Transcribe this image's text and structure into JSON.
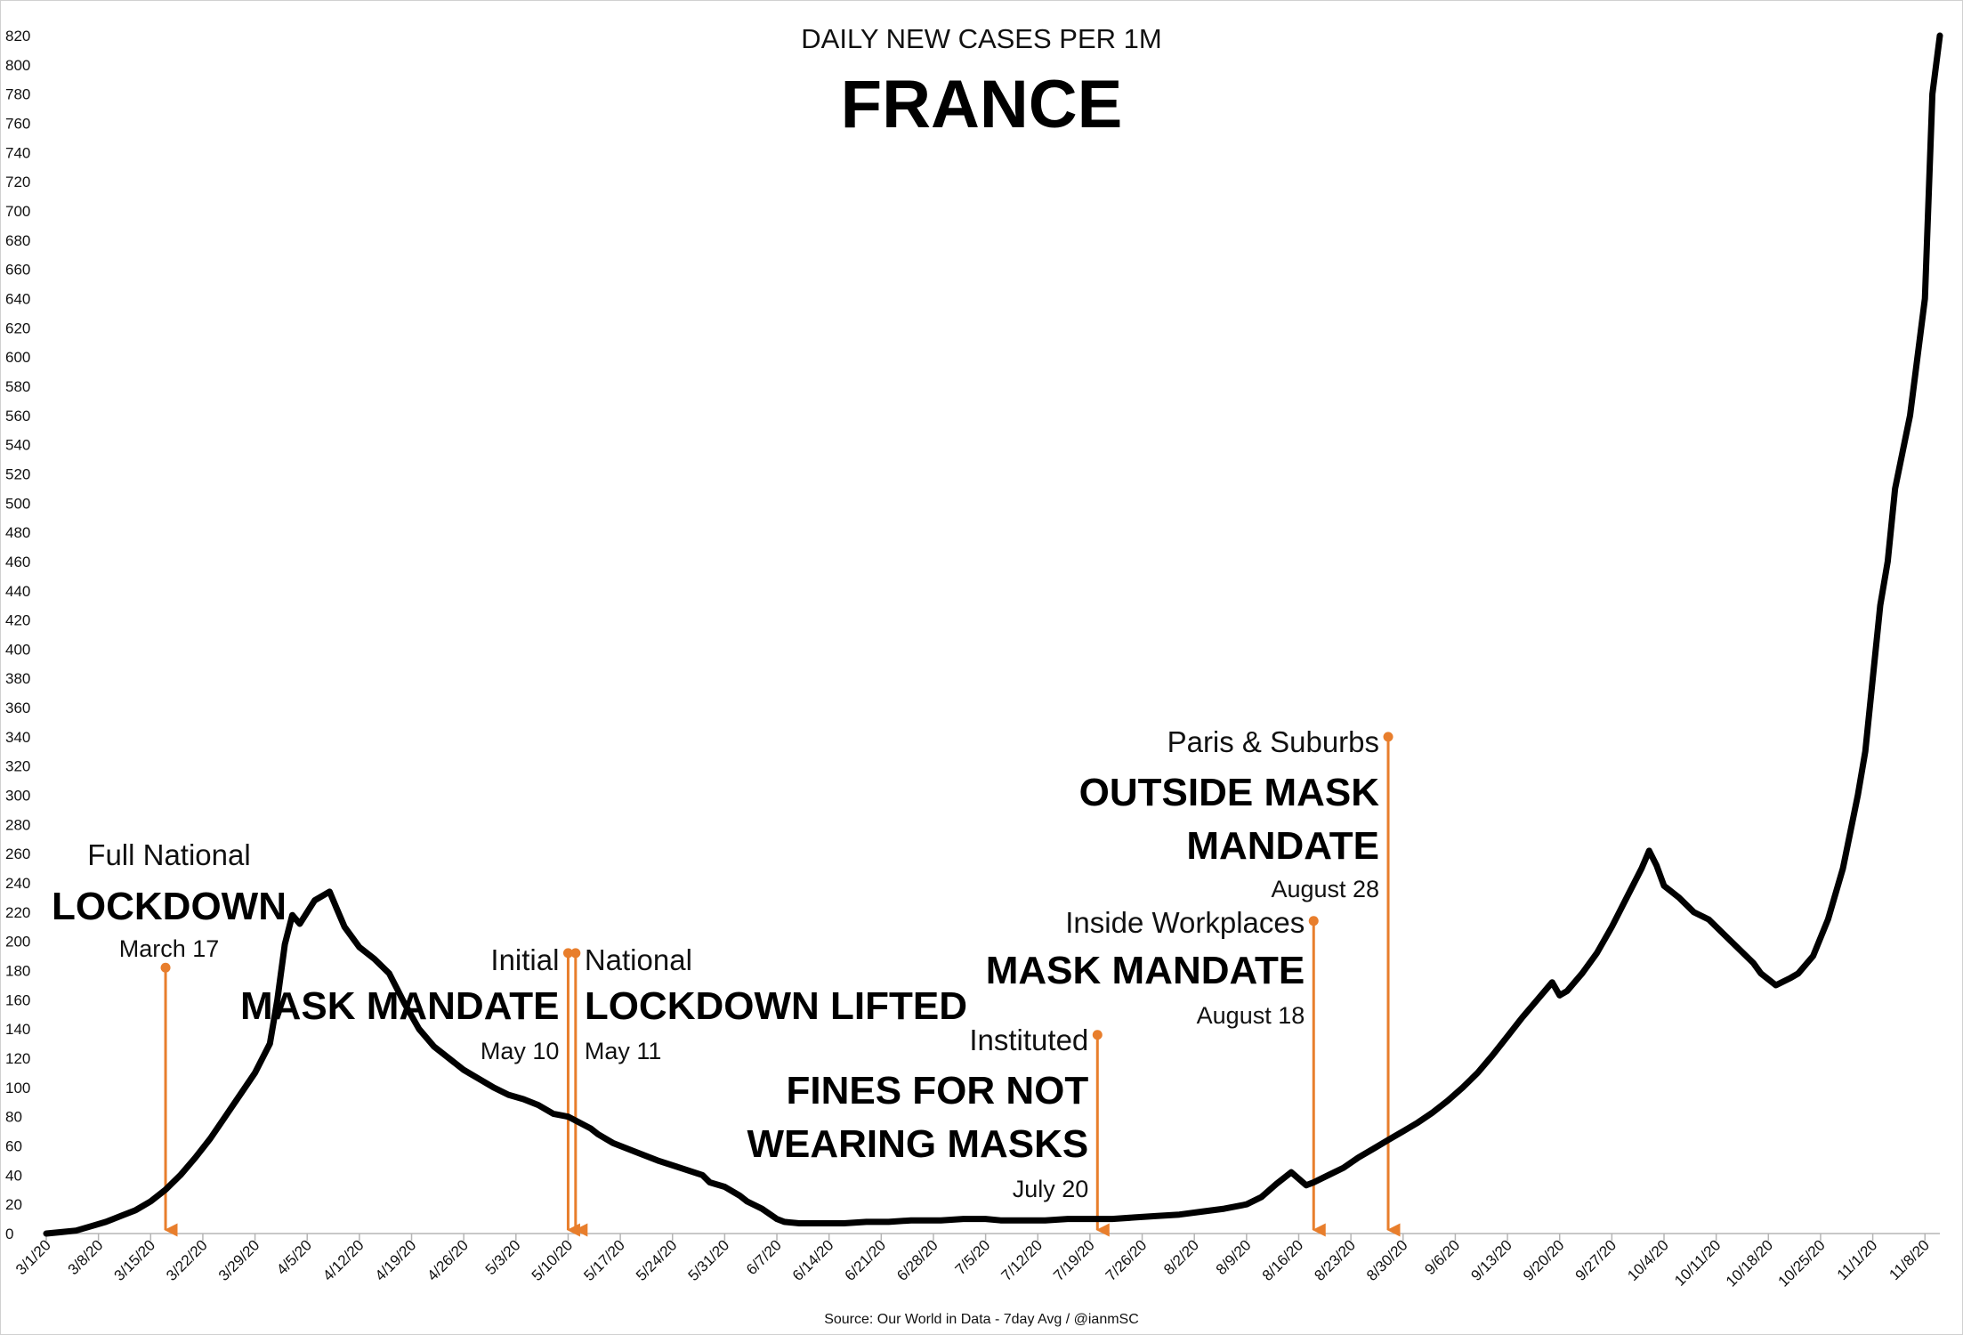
{
  "chart_data": {
    "type": "line",
    "title": "FRANCE",
    "subtitle": "DAILY NEW CASES PER 1M",
    "source": "Source: Our World in Data - 7day Avg / @ianmSC",
    "xlabel": "",
    "ylabel": "",
    "ylim": [
      0,
      820
    ],
    "ytick_step": 20,
    "grid": false,
    "legend": "none",
    "line_color": "#000000",
    "annotation_color": "#E87E2C",
    "x_start": "2020-03-01",
    "x_end": "2020-11-10",
    "x_ticks": [
      "3/1/20",
      "3/8/20",
      "3/15/20",
      "3/22/20",
      "3/29/20",
      "4/5/20",
      "4/12/20",
      "4/19/20",
      "4/26/20",
      "5/3/20",
      "5/10/20",
      "5/17/20",
      "5/24/20",
      "5/31/20",
      "6/7/20",
      "6/14/20",
      "6/21/20",
      "6/28/20",
      "7/5/20",
      "7/12/20",
      "7/19/20",
      "7/26/20",
      "8/2/20",
      "8/9/20",
      "8/16/20",
      "8/23/20",
      "8/30/20",
      "9/6/20",
      "9/13/20",
      "9/20/20",
      "9/27/20",
      "10/4/20",
      "10/11/20",
      "10/18/20",
      "10/25/20",
      "11/1/20",
      "11/8/20"
    ],
    "series": [
      {
        "x": [
          "2020-03-01",
          "2020-03-03",
          "2020-03-05",
          "2020-03-07",
          "2020-03-09",
          "2020-03-11",
          "2020-03-13",
          "2020-03-15",
          "2020-03-17",
          "2020-03-19",
          "2020-03-21",
          "2020-03-23",
          "2020-03-25",
          "2020-03-27",
          "2020-03-29",
          "2020-03-31",
          "2020-04-01",
          "2020-04-02",
          "2020-04-03",
          "2020-04-04",
          "2020-04-06",
          "2020-04-08",
          "2020-04-09",
          "2020-04-10",
          "2020-04-12",
          "2020-04-14",
          "2020-04-16",
          "2020-04-17",
          "2020-04-18",
          "2020-04-20",
          "2020-04-22",
          "2020-04-24",
          "2020-04-26",
          "2020-04-28",
          "2020-04-30",
          "2020-05-02",
          "2020-05-04",
          "2020-05-06",
          "2020-05-07",
          "2020-05-08",
          "2020-05-10",
          "2020-05-13",
          "2020-05-14",
          "2020-05-16",
          "2020-05-19",
          "2020-05-22",
          "2020-05-25",
          "2020-05-28",
          "2020-05-29",
          "2020-05-31",
          "2020-06-02",
          "2020-06-03",
          "2020-06-05",
          "2020-06-07",
          "2020-06-08",
          "2020-06-10",
          "2020-06-13",
          "2020-06-16",
          "2020-06-19",
          "2020-06-22",
          "2020-06-25",
          "2020-06-28",
          "2020-06-29",
          "2020-07-02",
          "2020-07-04",
          "2020-07-05",
          "2020-07-07",
          "2020-07-10",
          "2020-07-13",
          "2020-07-16",
          "2020-07-19",
          "2020-07-22",
          "2020-07-25",
          "2020-07-28",
          "2020-07-31",
          "2020-08-03",
          "2020-08-06",
          "2020-08-09",
          "2020-08-11",
          "2020-08-13",
          "2020-08-15",
          "2020-08-17",
          "2020-08-18",
          "2020-08-20",
          "2020-08-22",
          "2020-08-24",
          "2020-08-26",
          "2020-08-28",
          "2020-08-30",
          "2020-09-01",
          "2020-09-03",
          "2020-09-05",
          "2020-09-07",
          "2020-09-09",
          "2020-09-11",
          "2020-09-13",
          "2020-09-15",
          "2020-09-17",
          "2020-09-19",
          "2020-09-20",
          "2020-09-21",
          "2020-09-23",
          "2020-09-25",
          "2020-09-27",
          "2020-09-29",
          "2020-10-01",
          "2020-10-02",
          "2020-10-03",
          "2020-10-04",
          "2020-10-06",
          "2020-10-08",
          "2020-10-10",
          "2020-10-12",
          "2020-10-14",
          "2020-10-16",
          "2020-10-17",
          "2020-10-19",
          "2020-10-21",
          "2020-10-22",
          "2020-10-24",
          "2020-10-26",
          "2020-10-28",
          "2020-10-30",
          "2020-10-31",
          "2020-11-02",
          "2020-11-03",
          "2020-11-04",
          "2020-11-06",
          "2020-11-08",
          "2020-11-09",
          "2020-11-10"
        ],
        "y": [
          0,
          1,
          2,
          5,
          8,
          12,
          16,
          22,
          30,
          40,
          52,
          65,
          80,
          95,
          110,
          130,
          160,
          198,
          218,
          212,
          228,
          234,
          222,
          210,
          196,
          188,
          178,
          168,
          158,
          140,
          128,
          120,
          112,
          106,
          100,
          95,
          92,
          88,
          85,
          82,
          80,
          72,
          68,
          62,
          56,
          50,
          45,
          40,
          35,
          32,
          26,
          22,
          17,
          10,
          8,
          7,
          7,
          7,
          8,
          8,
          9,
          9,
          9,
          10,
          10,
          10,
          9,
          9,
          9,
          10,
          10,
          10,
          11,
          12,
          13,
          15,
          17,
          20,
          25,
          34,
          42,
          33,
          35,
          40,
          45,
          52,
          58,
          64,
          70,
          76,
          83,
          91,
          100,
          110,
          122,
          135,
          148,
          160,
          172,
          163,
          166,
          178,
          192,
          210,
          230,
          250,
          262,
          252,
          238,
          230,
          220,
          215,
          205,
          195,
          185,
          178,
          170,
          175,
          178,
          190,
          215,
          250,
          300,
          330,
          430,
          460,
          510,
          560,
          640,
          780,
          820
        ]
      }
    ],
    "annotations": [
      {
        "date": "2020-03-17",
        "lines": [
          "Full National"
        ],
        "headline": [
          "LOCKDOWN"
        ],
        "date_label": "March 17",
        "marker_top": 182
      },
      {
        "date": "2020-05-10",
        "lines": [
          "Initial"
        ],
        "headline": [
          "MASK MANDATE"
        ],
        "date_label": "May 10",
        "marker_top": 192
      },
      {
        "date": "2020-05-11",
        "lines": [
          "National"
        ],
        "headline": [
          "LOCKDOWN LIFTED"
        ],
        "date_label": "May 11",
        "marker_top": 192
      },
      {
        "date": "2020-07-20",
        "lines": [
          "Instituted"
        ],
        "headline": [
          "FINES FOR NOT",
          "WEARING MASKS"
        ],
        "date_label": "July 20",
        "marker_top": 136
      },
      {
        "date": "2020-08-18",
        "lines": [
          "Inside Workplaces"
        ],
        "headline": [
          "MASK MANDATE"
        ],
        "date_label": "August 18",
        "marker_top": 214
      },
      {
        "date": "2020-08-28",
        "lines": [
          "Paris & Suburbs"
        ],
        "headline": [
          "OUTSIDE MASK",
          "MANDATE"
        ],
        "date_label": "August 28",
        "marker_top": 340
      }
    ]
  }
}
